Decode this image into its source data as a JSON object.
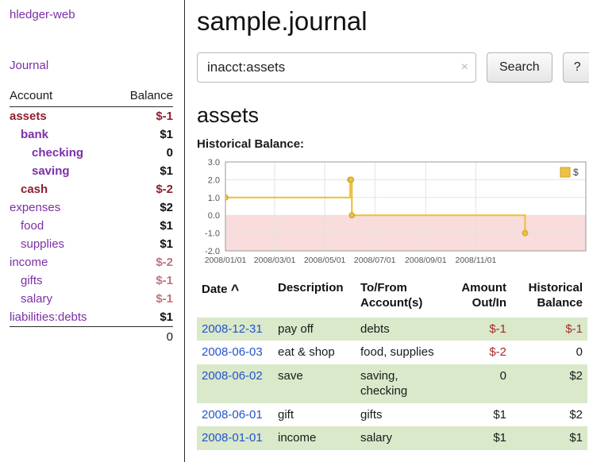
{
  "sidebar": {
    "app_title": "hledger-web",
    "journal_link": "Journal",
    "accounts": {
      "header_account": "Account",
      "header_balance": "Balance",
      "rows": [
        {
          "name": "assets",
          "balance": "$-1",
          "indent": 0,
          "bold": true,
          "name_negative": true,
          "balance_negative": true
        },
        {
          "name": "bank",
          "balance": "$1",
          "indent": 1,
          "bold": true,
          "name_negative": false,
          "balance_negative": false
        },
        {
          "name": "checking",
          "balance": "0",
          "indent": 2,
          "bold": true,
          "name_negative": false,
          "balance_negative": false
        },
        {
          "name": "saving",
          "balance": "$1",
          "indent": 2,
          "bold": true,
          "name_negative": false,
          "balance_negative": false
        },
        {
          "name": "cash",
          "balance": "$-2",
          "indent": 1,
          "bold": true,
          "name_negative": true,
          "balance_negative": true
        },
        {
          "name": "expenses",
          "balance": "$2",
          "indent": 0,
          "bold": false,
          "name_negative": false,
          "balance_negative": false
        },
        {
          "name": "food",
          "balance": "$1",
          "indent": 1,
          "bold": false,
          "name_negative": false,
          "balance_negative": false
        },
        {
          "name": "supplies",
          "balance": "$1",
          "indent": 1,
          "bold": false,
          "name_negative": false,
          "balance_negative": false
        },
        {
          "name": "income",
          "balance": "$-2",
          "indent": 0,
          "bold": false,
          "name_negative": false,
          "balance_negative": true
        },
        {
          "name": "gifts",
          "balance": "$-1",
          "indent": 1,
          "bold": false,
          "name_negative": false,
          "balance_negative": true
        },
        {
          "name": "salary",
          "balance": "$-1",
          "indent": 1,
          "bold": false,
          "name_negative": false,
          "balance_negative": true
        },
        {
          "name": "liabilities:debts",
          "balance": "$1",
          "indent": 0,
          "bold": false,
          "name_negative": false,
          "balance_negative": false
        }
      ],
      "total": "0"
    }
  },
  "main": {
    "title": "sample.journal",
    "search": {
      "value": "inacct:assets",
      "clear_icon": "×",
      "button_label": "Search",
      "help_label": "?"
    },
    "account_heading": "assets",
    "chart_title": "Historical Balance:"
  },
  "chart_data": {
    "type": "line",
    "step": true,
    "title": "Historical Balance of assets",
    "legend": {
      "label": "$",
      "position": "top-right"
    },
    "series": [
      {
        "name": "$",
        "color": "#edc240",
        "points": [
          {
            "date": "2008-01-01",
            "value": 1
          },
          {
            "date": "2008-06-01",
            "value": 2
          },
          {
            "date": "2008-06-02",
            "value": 2
          },
          {
            "date": "2008-06-03",
            "value": 0
          },
          {
            "date": "2008-12-31",
            "value": -1
          }
        ]
      }
    ],
    "ylim": [
      -2.0,
      3.0
    ],
    "yticks": [
      "3.0",
      "2.0",
      "1.0",
      "0.0",
      "-1.0",
      "-2.0"
    ],
    "xticks": [
      {
        "date": "2008-01-01",
        "label": "2008/01/01"
      },
      {
        "date": "2008-03-01",
        "label": "2008/03/01"
      },
      {
        "date": "2008-05-01",
        "label": "2008/05/01"
      },
      {
        "date": "2008-07-01",
        "label": "2008/07/01"
      },
      {
        "date": "2008-09-01",
        "label": "2008/09/01"
      },
      {
        "date": "2008-11-01",
        "label": "2008/11/01"
      }
    ],
    "x_domain": [
      "2008-01-01",
      "2009-03-15"
    ],
    "grid": true,
    "negative_region_color": "#f9dcdc",
    "grid_color": "#e3e3e3",
    "border_color": "#999999"
  },
  "register": {
    "headers": {
      "date": "Date",
      "description": "Description",
      "accounts": "To/From Account(s)",
      "amount": "Amount Out/In",
      "balance": "Historical Balance"
    },
    "sort_icon": "^",
    "rows": [
      {
        "date": "2008-12-31",
        "description": "pay off",
        "accounts": "debts",
        "amount": "$-1",
        "balance": "$-1",
        "amount_negative": true,
        "balance_negative": true,
        "highlight": true
      },
      {
        "date": "2008-06-03",
        "description": "eat & shop",
        "accounts": "food, supplies",
        "amount": "$-2",
        "balance": "0",
        "amount_negative": true,
        "balance_negative": false,
        "highlight": false
      },
      {
        "date": "2008-06-02",
        "description": "save",
        "accounts": "saving, checking",
        "amount": "0",
        "balance": "$2",
        "amount_negative": false,
        "balance_negative": false,
        "highlight": true
      },
      {
        "date": "2008-06-01",
        "description": "gift",
        "accounts": "gifts",
        "amount": "$1",
        "balance": "$2",
        "amount_negative": false,
        "balance_negative": false,
        "highlight": false
      },
      {
        "date": "2008-01-01",
        "description": "income",
        "accounts": "salary",
        "amount": "$1",
        "balance": "$1",
        "amount_negative": false,
        "balance_negative": false,
        "highlight": true
      }
    ]
  }
}
